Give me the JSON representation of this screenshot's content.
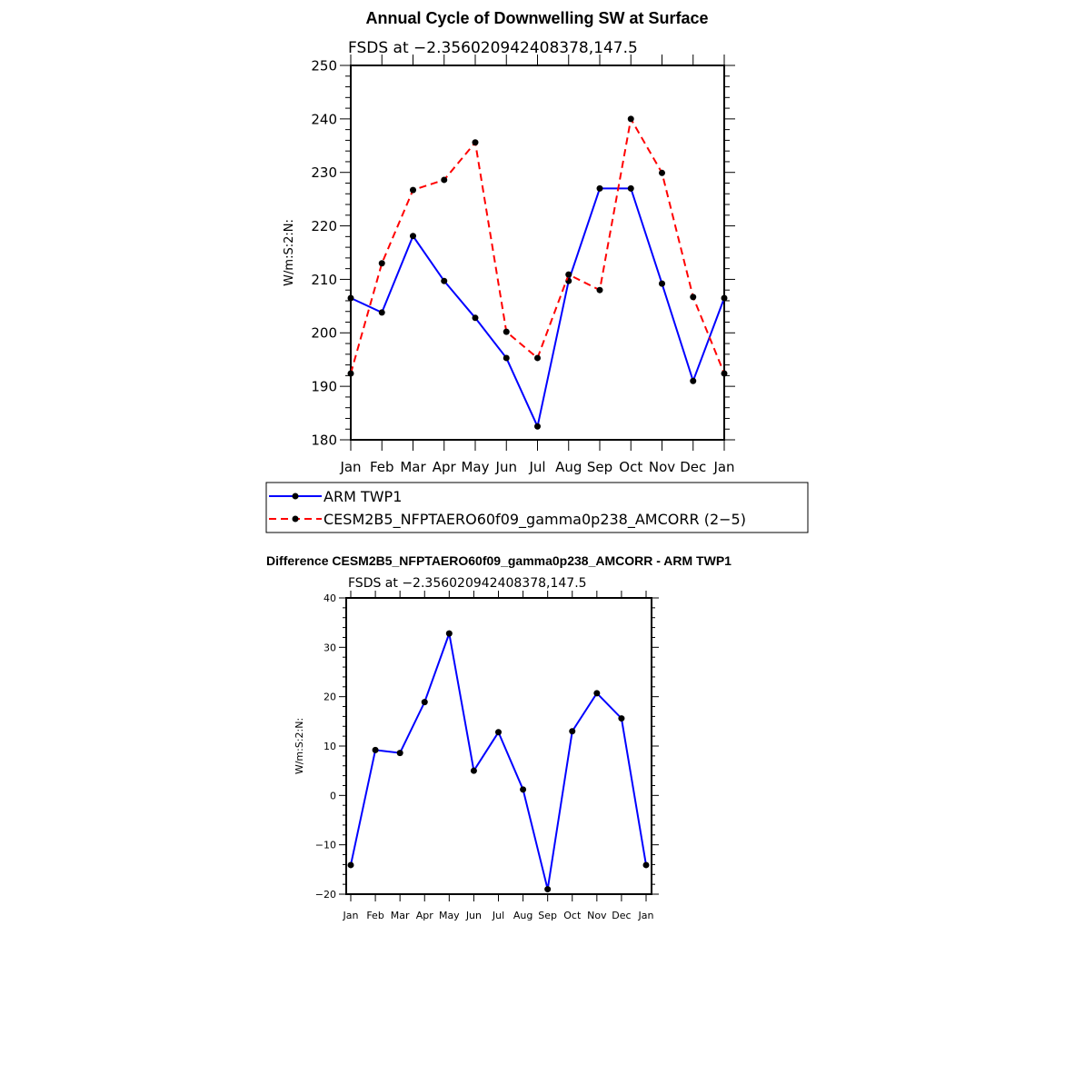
{
  "chart_data": [
    {
      "type": "line",
      "title": "Annual Cycle of Downwelling SW at Surface",
      "subtitle": "FSDS at −2.356020942408378,147.5",
      "xlabel": "",
      "ylabel": "W/m:S:2:N:",
      "categories": [
        "Jan",
        "Feb",
        "Mar",
        "Apr",
        "May",
        "Jun",
        "Jul",
        "Aug",
        "Sep",
        "Oct",
        "Nov",
        "Dec",
        "Jan"
      ],
      "ylim": [
        180,
        250
      ],
      "yticks": [
        180,
        190,
        200,
        210,
        220,
        230,
        240,
        250
      ],
      "legend_position": "bottom",
      "series": [
        {
          "name": "ARM TWP1",
          "color": "#0000ff",
          "dash": "solid",
          "values": [
            206.5,
            203.8,
            218.1,
            209.7,
            202.8,
            195.3,
            182.5,
            209.7,
            227.0,
            227.0,
            209.2,
            191.0,
            206.5
          ]
        },
        {
          "name": "CESM2B5_NFPTAERO60f09_gamma0p238_AMCORR (2−5)",
          "color": "#ff0000",
          "dash": "dashed",
          "values": [
            192.4,
            213.0,
            226.7,
            228.6,
            235.6,
            200.2,
            195.3,
            210.9,
            208.0,
            240.0,
            229.9,
            206.7,
            192.4
          ]
        }
      ]
    },
    {
      "type": "line",
      "title": "Difference CESM2B5_NFPTAERO60f09_gamma0p238_AMCORR - ARM TWP1",
      "subtitle": "FSDS at −2.356020942408378,147.5",
      "xlabel": "",
      "ylabel": "W/m:S:2:N:",
      "categories": [
        "Jan",
        "Feb",
        "Mar",
        "Apr",
        "May",
        "Jun",
        "Jul",
        "Aug",
        "Sep",
        "Oct",
        "Nov",
        "Dec",
        "Jan"
      ],
      "ylim": [
        -20,
        40
      ],
      "yticks": [
        -20,
        -10,
        0,
        10,
        20,
        30,
        40
      ],
      "ytick_labels": [
        "−20",
        "−10",
        "0",
        "10",
        "20",
        "30",
        "40"
      ],
      "series": [
        {
          "name": "Difference",
          "color": "#0000ff",
          "dash": "solid",
          "values": [
            -14.1,
            9.2,
            8.6,
            18.9,
            32.8,
            5.0,
            12.8,
            1.2,
            -19.0,
            13.0,
            20.7,
            15.6,
            -14.1
          ]
        }
      ]
    }
  ]
}
